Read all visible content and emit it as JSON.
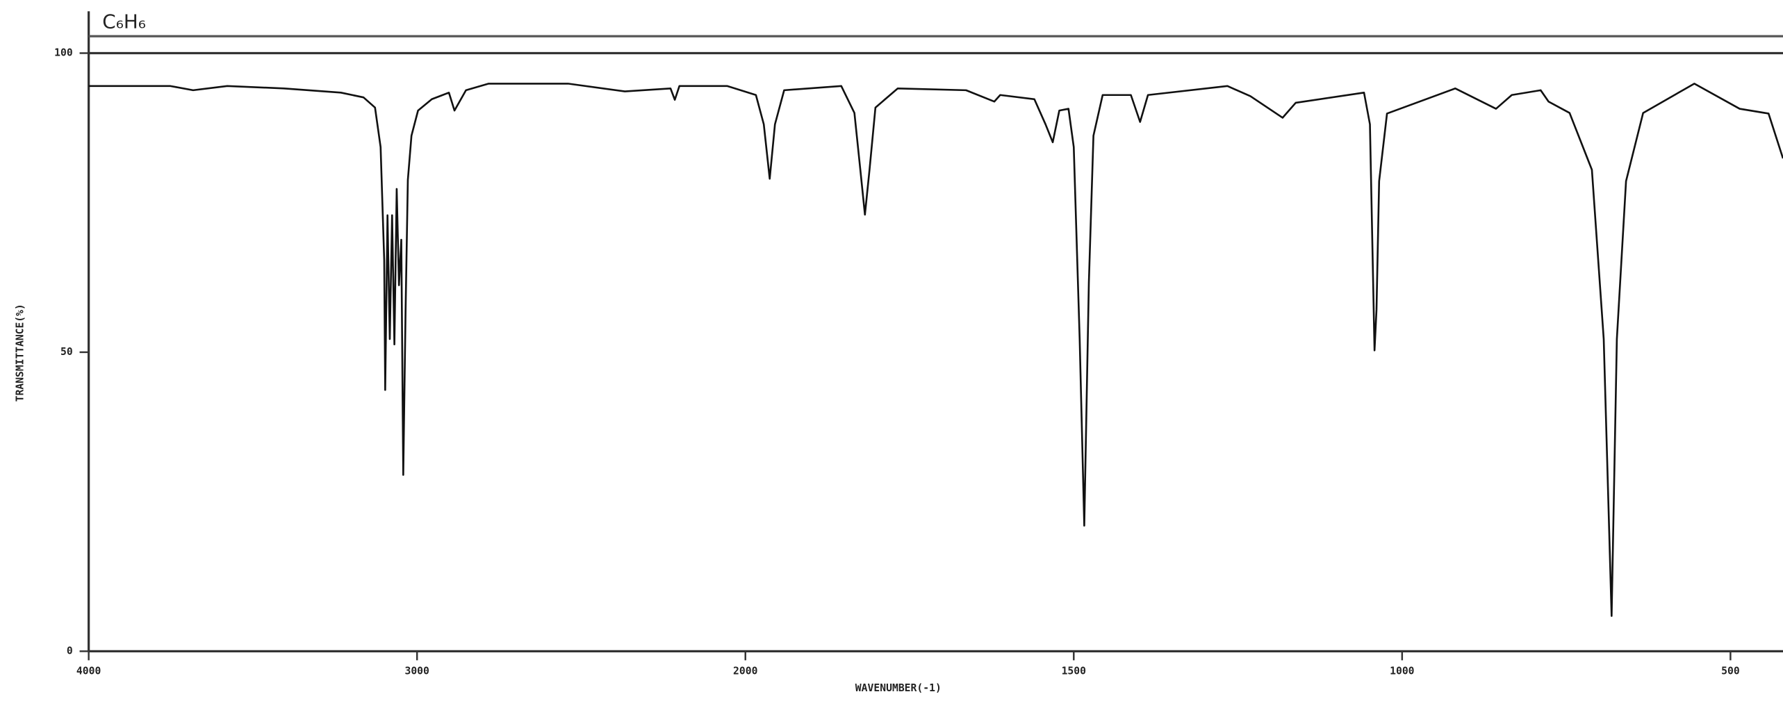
{
  "chart_data": {
    "type": "line",
    "title": "C₆H₆",
    "xlabel": "WAVENUMBER(-1)",
    "ylabel": "TRANSMITTANCE(%)",
    "color": "#111111",
    "xlim": [
      4000,
      420
    ],
    "xticks": [
      4000,
      3000,
      2000,
      1500,
      1000,
      500
    ],
    "ylim": [
      0,
      100
    ],
    "yticks": [
      0,
      50,
      100
    ],
    "x": [
      4000,
      3751,
      3682,
      3578,
      3405,
      3232,
      3163,
      3128,
      3111,
      3100,
      3097,
      3090,
      3083,
      3076,
      3069,
      3062,
      3055,
      3048,
      3042,
      3035,
      3028,
      3017,
      2997,
      2955,
      2903,
      2886,
      2851,
      2782,
      2540,
      2367,
      2228,
      2215,
      2201,
      2055,
      1984,
      1972,
      1963,
      1955,
      1941,
      1854,
      1834,
      1825,
      1818,
      1811,
      1802,
      1768,
      1664,
      1621,
      1612,
      1560,
      1543,
      1532,
      1522,
      1508,
      1500,
      1491,
      1484,
      1477,
      1470,
      1456,
      1413,
      1399,
      1387,
      1266,
      1231,
      1182,
      1162,
      1058,
      1049,
      1042,
      1039,
      1035,
      1023,
      919,
      857,
      833,
      789,
      777,
      745,
      711,
      693,
      681,
      673,
      659,
      633,
      555,
      486,
      442,
      420
    ],
    "values": [
      94.5,
      94.5,
      93.8,
      94.5,
      94.1,
      93.4,
      92.6,
      90.9,
      84.3,
      65.4,
      43.7,
      72.9,
      52.2,
      72.9,
      51.3,
      77.3,
      61.2,
      68.8,
      29.5,
      56.7,
      78.8,
      86.2,
      90.4,
      92.3,
      93.4,
      90.4,
      93.8,
      94.9,
      94.9,
      93.6,
      94.1,
      92.2,
      94.5,
      94.5,
      93.0,
      88.1,
      79.0,
      88.1,
      93.8,
      94.5,
      90.0,
      80.5,
      73.0,
      80.5,
      90.9,
      94.1,
      93.8,
      91.9,
      93.0,
      92.3,
      88.1,
      85.1,
      90.4,
      90.7,
      84.3,
      52.2,
      21.0,
      61.6,
      86.2,
      93.0,
      93.0,
      88.5,
      93.0,
      94.5,
      92.8,
      89.2,
      91.7,
      93.4,
      88.1,
      50.3,
      57.1,
      78.6,
      89.9,
      94.1,
      90.7,
      93.0,
      93.8,
      91.9,
      90.0,
      80.5,
      52.2,
      5.9,
      52.2,
      78.6,
      90.0,
      94.9,
      90.7,
      89.9,
      82.4
    ]
  }
}
